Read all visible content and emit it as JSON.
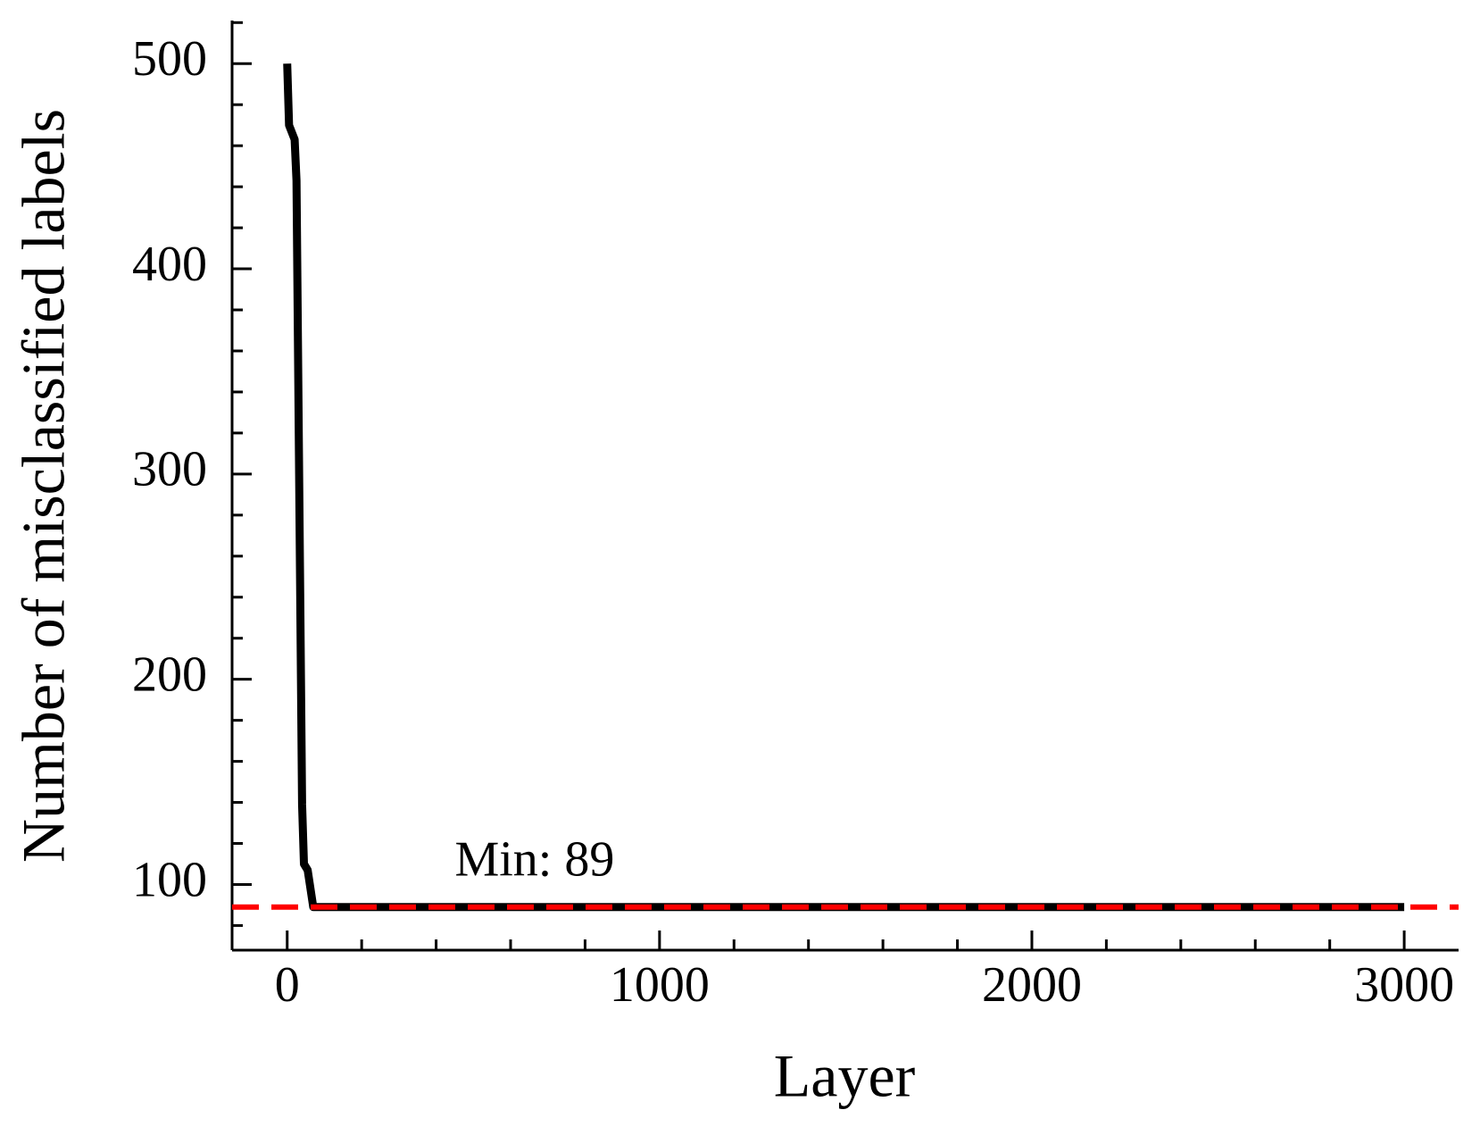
{
  "chart_data": {
    "type": "line",
    "x_label": "Layer",
    "y_label": "Number of misclassified labels",
    "x": [
      0,
      5,
      20,
      25,
      40,
      45,
      55,
      70,
      3000
    ],
    "series": [
      {
        "color": "#000000",
        "values": [
          500,
          470,
          463,
          443,
          139,
          110,
          107,
          89,
          89
        ]
      }
    ],
    "xlim": [
      -148,
      3146
    ],
    "ylim": [
      68,
      521
    ],
    "xticks": [
      0,
      1000,
      2000,
      3000
    ],
    "yticks": [
      100,
      200,
      300,
      400,
      500
    ],
    "xminorticks": [
      200,
      400,
      600,
      800,
      1200,
      1400,
      1600,
      1800,
      2200,
      2400,
      2600,
      2800
    ],
    "yminorticks": [
      80,
      120,
      140,
      160,
      180,
      220,
      240,
      260,
      280,
      320,
      340,
      360,
      380,
      420,
      440,
      460,
      480,
      520
    ],
    "hline": {
      "value": 89,
      "label": "Min: 89",
      "color": "#ff0000"
    }
  }
}
